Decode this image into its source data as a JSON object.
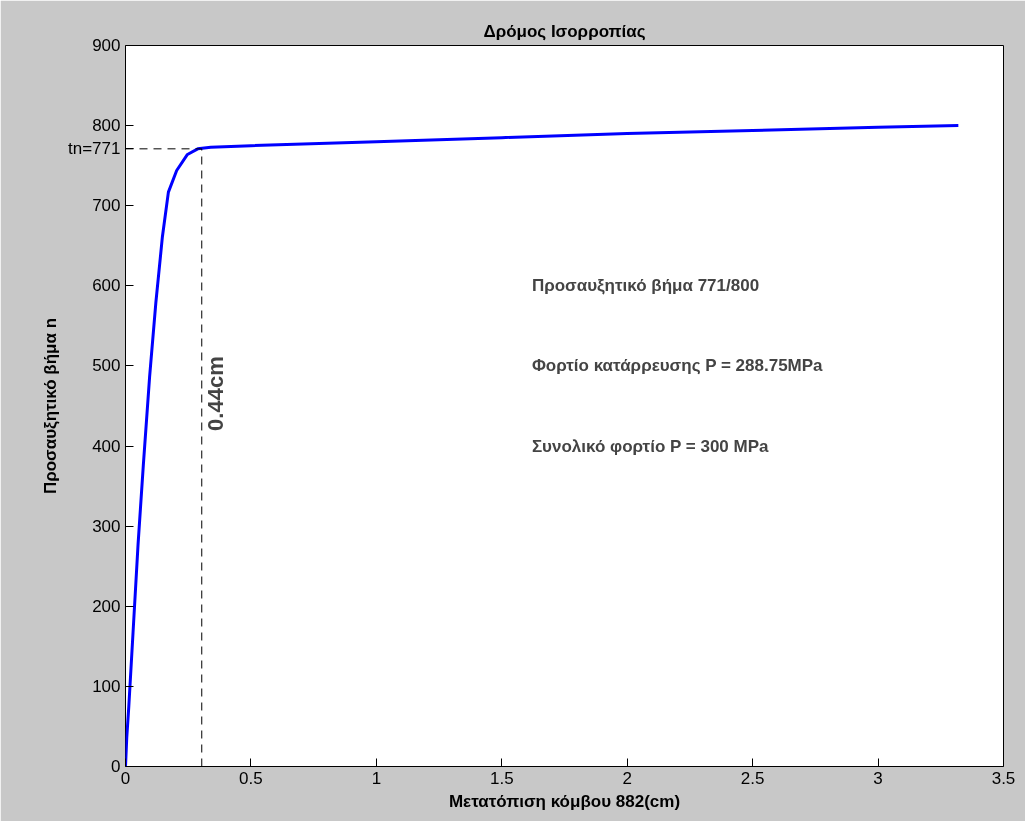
{
  "chart_data": {
    "type": "line",
    "title": "Δρόμος Ισορροπίας",
    "xlabel": "Μετατόπιση κόμβου 882(cm)",
    "ylabel": "Προσαυξητικό βήμα n",
    "x": [
      0,
      0.005,
      0.013,
      0.03,
      0.05,
      0.071,
      0.096,
      0.121,
      0.147,
      0.171,
      0.204,
      0.247,
      0.288,
      0.34,
      0.5,
      1,
      1.5,
      2,
      2.5,
      3,
      3.32
    ],
    "series": [
      {
        "color": "#0000ff",
        "values": [
          0,
          36,
          74,
          167,
          277,
          376,
          486,
          579,
          661,
          717,
          744,
          764,
          771,
          773,
          775,
          780,
          785,
          790,
          794,
          798,
          800
        ]
      }
    ],
    "xlim": [
      0,
      3.5
    ],
    "ylim": [
      0,
      900
    ],
    "xticks": [
      0,
      0.5,
      1,
      1.5,
      2,
      2.5,
      3,
      3.5
    ],
    "yticks": [
      0,
      100,
      200,
      300,
      400,
      500,
      600,
      700,
      800,
      900
    ],
    "grid": false,
    "line_style": "solid",
    "marker": "none",
    "ref_lines": [
      {
        "axis": "y",
        "value": 771,
        "label": "tn=771",
        "color": "#000000",
        "line_style": "dashed"
      },
      {
        "axis": "x",
        "value": 0.304,
        "label": "0.44cm",
        "color": "#000000",
        "line_style": "dashed"
      }
    ],
    "annotations": [
      "Προσαυξητικό βήμα 771/800",
      "Φορτίο κατάρρευσης P = 288.75MPa",
      "Συνολικό φορτίο P = 300 MPa"
    ]
  }
}
